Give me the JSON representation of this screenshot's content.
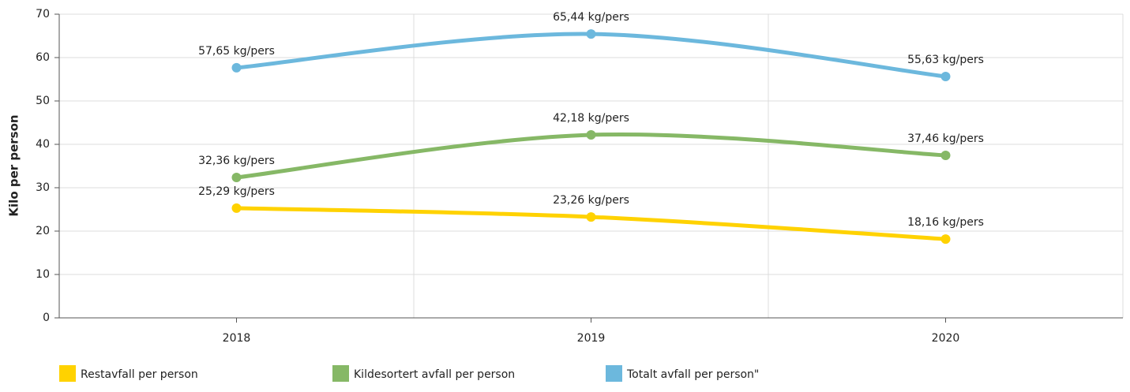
{
  "chart_data": {
    "type": "line",
    "y_label": "Kilo per person",
    "categories": [
      "2018",
      "2019",
      "2020"
    ],
    "series": [
      {
        "name": "Restavfall per person",
        "color": "#ffd200",
        "values": [
          25.29,
          23.26,
          18.16
        ],
        "value_labels": [
          "25,29 kg/pers",
          "23,26 kg/pers",
          "18,16 kg/pers"
        ]
      },
      {
        "name": "Kildesortert avfall per person",
        "color": "#86b866",
        "values": [
          32.36,
          42.18,
          37.46
        ],
        "value_labels": [
          "32,36 kg/pers",
          "42,18 kg/pers",
          "37,46 kg/pers"
        ]
      },
      {
        "name": "Totalt avfall per person\"",
        "color": "#6cb8dd",
        "values": [
          57.65,
          65.44,
          55.63
        ],
        "value_labels": [
          "57,65 kg/pers",
          "65,44 kg/pers",
          "55,63 kg/pers"
        ]
      }
    ],
    "ylim": [
      0,
      70
    ],
    "yticks": [
      0,
      10,
      20,
      30,
      40,
      50,
      60,
      70
    ],
    "grid": true
  }
}
